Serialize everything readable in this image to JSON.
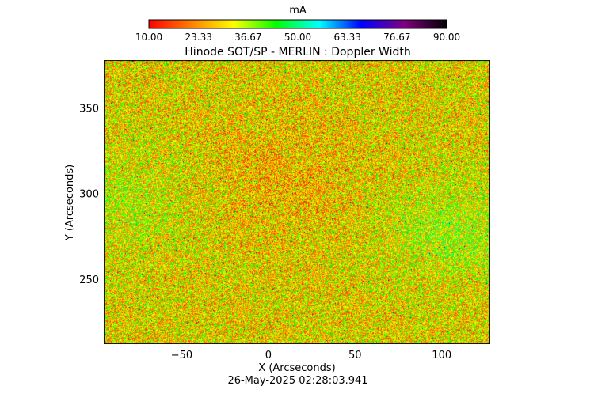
{
  "chart_data": {
    "type": "heatmap",
    "title": "Hinode SOT/SP - MERLIN : Doppler Width",
    "xlabel": "X (Arcseconds)",
    "ylabel": "Y (Arcseconds)",
    "xlim": [
      -95,
      128
    ],
    "ylim": [
      212,
      378
    ],
    "x_ticks": [
      -50,
      0,
      50,
      100
    ],
    "y_ticks": [
      250,
      300,
      350
    ],
    "colorbar": {
      "label": "mA",
      "range": [
        10.0,
        90.0
      ],
      "tick_labels": [
        "10.00",
        "23.33",
        "36.67",
        "50.00",
        "63.33",
        "76.67",
        "90.00"
      ],
      "colormap": [
        "#ff0000",
        "#ff8000",
        "#ffff00",
        "#00ff00",
        "#00ffff",
        "#0000ff",
        "#800080",
        "#000000"
      ]
    },
    "typical_value_range": [
      20,
      55
    ],
    "footer": "26-May-2025 02:28:03.941"
  }
}
